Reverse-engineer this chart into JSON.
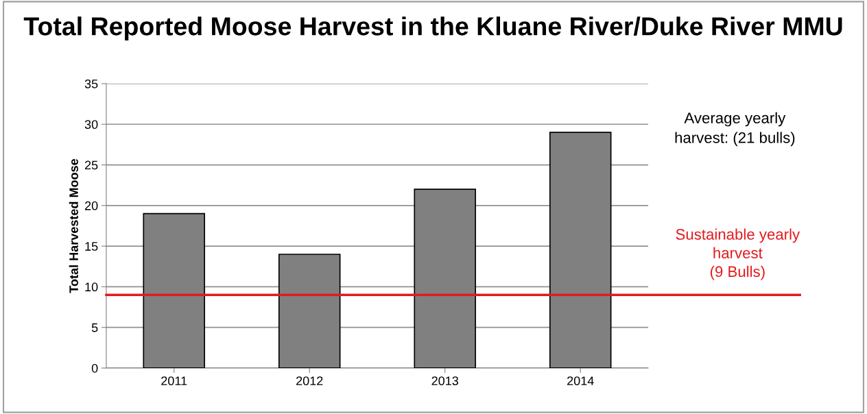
{
  "chart_data": {
    "type": "bar",
    "title": "Total Reported Moose Harvest in the Kluane River/Duke River MMU",
    "ylabel": "Total Harvested Moose",
    "categories": [
      "2011",
      "2012",
      "2013",
      "2014"
    ],
    "values": [
      19,
      14,
      22,
      29
    ],
    "color": "#808080",
    "ylim": [
      0,
      35
    ],
    "yticks": [
      0,
      5,
      10,
      15,
      20,
      25,
      30,
      35
    ],
    "grid": "y",
    "ref_lines": [
      {
        "axis": "y",
        "value": 9,
        "label": "Sustainable yearly\nharvest\n(9 Bulls)",
        "color": "#e31a1c"
      }
    ],
    "annotations": [
      "Average yearly\nharvest: (21 bulls)"
    ]
  }
}
